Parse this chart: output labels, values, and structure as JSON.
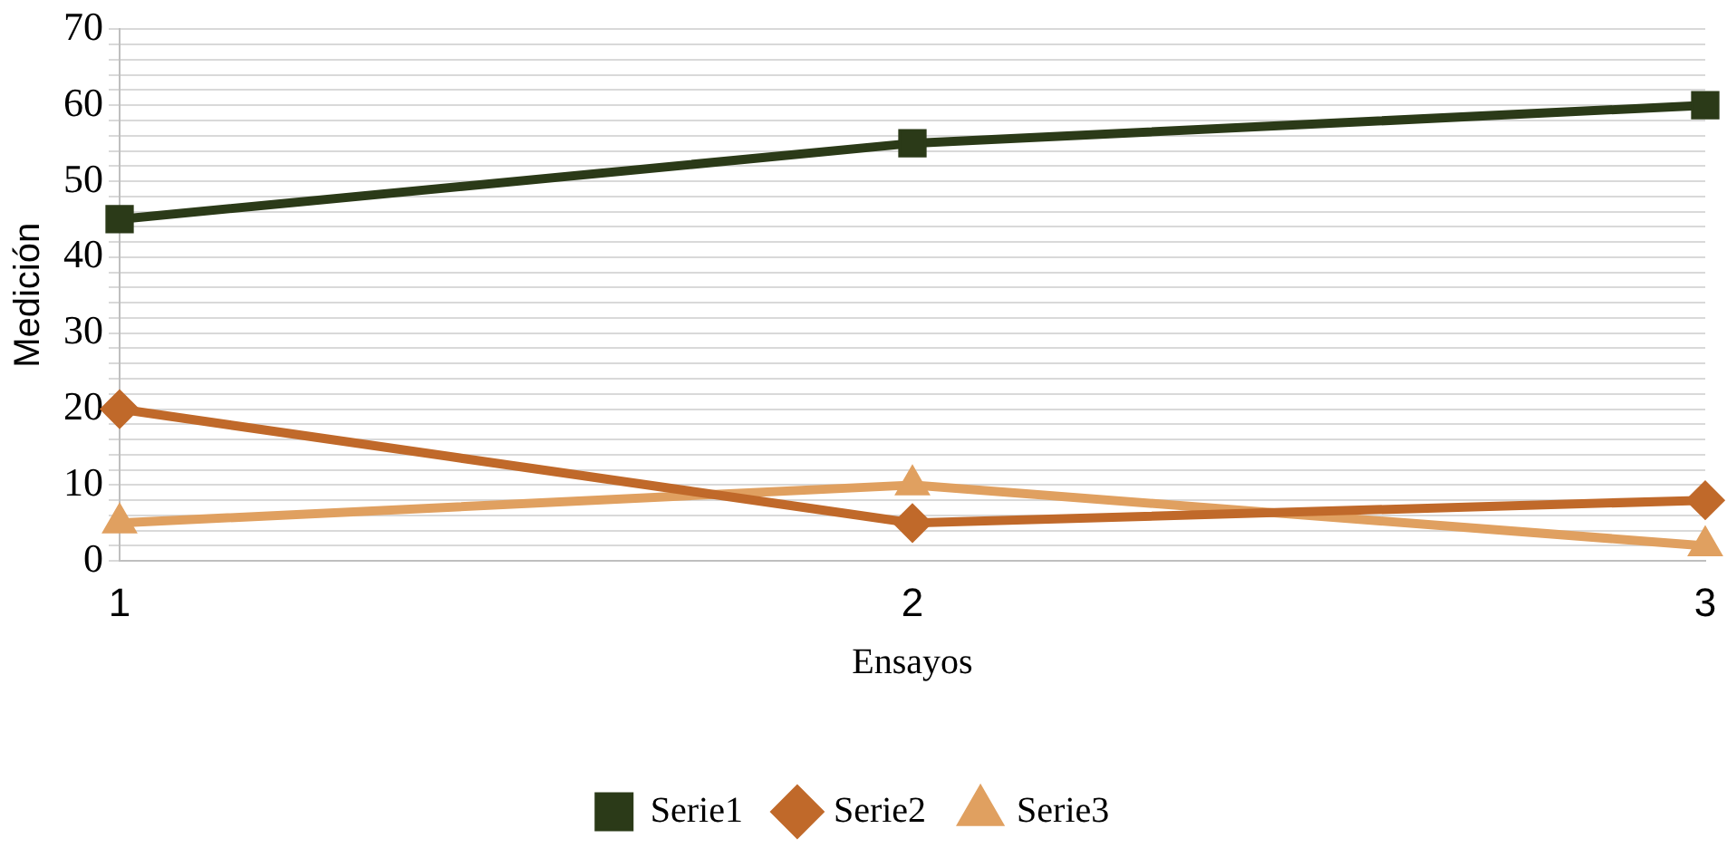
{
  "chart_data": {
    "type": "line",
    "xlabel": "Ensayos",
    "ylabel": "Medición",
    "x": [
      1,
      2,
      3
    ],
    "xlim": [
      1,
      3
    ],
    "xticks": [
      1,
      2,
      3
    ],
    "ylim": [
      0,
      70
    ],
    "yticks": [
      0,
      {
        "value": 2,
        "label": null
      },
      {
        "value": 4,
        "label": null
      },
      {
        "value": 6,
        "label": null
      },
      {
        "value": 8,
        "label": null
      },
      10,
      {
        "value": 12,
        "label": null
      },
      {
        "value": 14,
        "label": null
      },
      {
        "value": 16,
        "label": null
      },
      {
        "value": 18,
        "label": null
      },
      20,
      {
        "value": 22,
        "label": null
      },
      {
        "value": 24,
        "label": null
      },
      {
        "value": 26,
        "label": null
      },
      {
        "value": 28,
        "label": null
      },
      30,
      {
        "value": 32,
        "label": null
      },
      {
        "value": 34,
        "label": null
      },
      {
        "value": 36,
        "label": null
      },
      {
        "value": 38,
        "label": null
      },
      40,
      {
        "value": 42,
        "label": null
      },
      {
        "value": 44,
        "label": null
      },
      {
        "value": 46,
        "label": null
      },
      {
        "value": 48,
        "label": null
      },
      50,
      {
        "value": 52,
        "label": null
      },
      {
        "value": 54,
        "label": null
      },
      {
        "value": 56,
        "label": null
      },
      {
        "value": 58,
        "label": null
      },
      60,
      {
        "value": 62,
        "label": null
      },
      {
        "value": 64,
        "label": null
      },
      {
        "value": 66,
        "label": null
      },
      {
        "value": 68,
        "label": null
      },
      70
    ],
    "grid": "y",
    "legend": "bottom",
    "line_style": "solid",
    "series": [
      {
        "name": "Serie1",
        "color": "#2b3a18",
        "marker": "square",
        "values": [
          45,
          55,
          60
        ]
      },
      {
        "name": "Serie2",
        "color": "#c0692a",
        "marker": "diamond",
        "values": [
          20,
          5,
          8
        ]
      },
      {
        "name": "Serie3",
        "color": "#e0a060",
        "marker": "triangle",
        "values": [
          5,
          10,
          2
        ]
      }
    ]
  }
}
